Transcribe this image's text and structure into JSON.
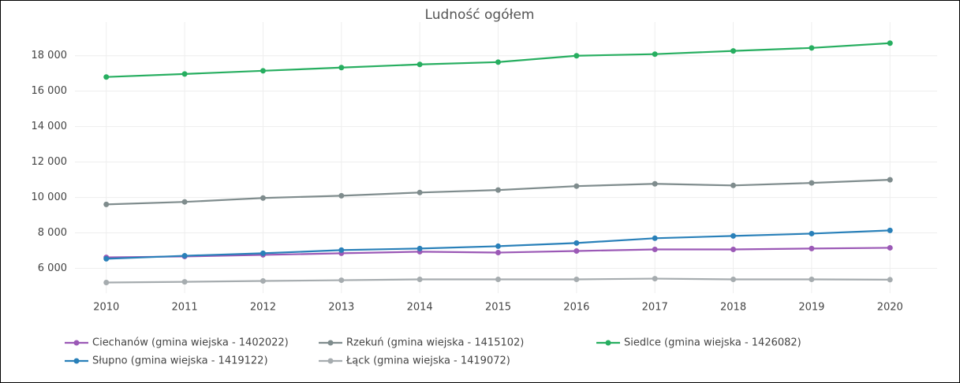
{
  "chart_data": {
    "type": "line",
    "title": "Ludność ogółem",
    "x": [
      2010,
      2011,
      2012,
      2013,
      2014,
      2015,
      2016,
      2017,
      2018,
      2019,
      2020
    ],
    "xlim": [
      2009.6,
      2020.4
    ],
    "xticks": [
      2010,
      2011,
      2012,
      2013,
      2014,
      2015,
      2016,
      2017,
      2018,
      2019,
      2020
    ],
    "ylim": [
      4600,
      19900
    ],
    "yticks": [
      {
        "value": 6000,
        "label": "6 000"
      },
      {
        "value": 8000,
        "label": "8 000"
      },
      {
        "value": 10000,
        "label": "10 000"
      },
      {
        "value": 12000,
        "label": "12 000"
      },
      {
        "value": 14000,
        "label": "14 000"
      },
      {
        "value": 16000,
        "label": "16 000"
      },
      {
        "value": 18000,
        "label": "18 000"
      }
    ],
    "grid": true,
    "legend": "bottom",
    "series": [
      {
        "name": "Ciechanów (gmina wiejska - 1402022)",
        "color": "#9b59b6",
        "values": [
          6620,
          6670,
          6760,
          6850,
          6940,
          6890,
          6980,
          7070,
          7070,
          7120,
          7160
        ]
      },
      {
        "name": "Rzekuń (gmina wiejska - 1415102)",
        "color": "#7f8c8d",
        "values": [
          9610,
          9750,
          9970,
          10100,
          10280,
          10420,
          10640,
          10770,
          10680,
          10820,
          11000
        ]
      },
      {
        "name": "Siedlce (gmina wiejska - 1426082)",
        "color": "#27ae60",
        "values": [
          16800,
          16970,
          17150,
          17330,
          17510,
          17640,
          18000,
          18090,
          18270,
          18440,
          18710
        ]
      },
      {
        "name": "Słupno (gmina wiejska - 1419122)",
        "color": "#2980b9",
        "values": [
          6540,
          6710,
          6850,
          7030,
          7120,
          7250,
          7430,
          7700,
          7830,
          7960,
          8140
        ]
      },
      {
        "name": "Łąck (gmina wiejska - 1419072)",
        "color": "#a6acaf",
        "values": [
          5200,
          5240,
          5290,
          5330,
          5380,
          5380,
          5380,
          5420,
          5380,
          5380,
          5360
        ]
      }
    ]
  }
}
